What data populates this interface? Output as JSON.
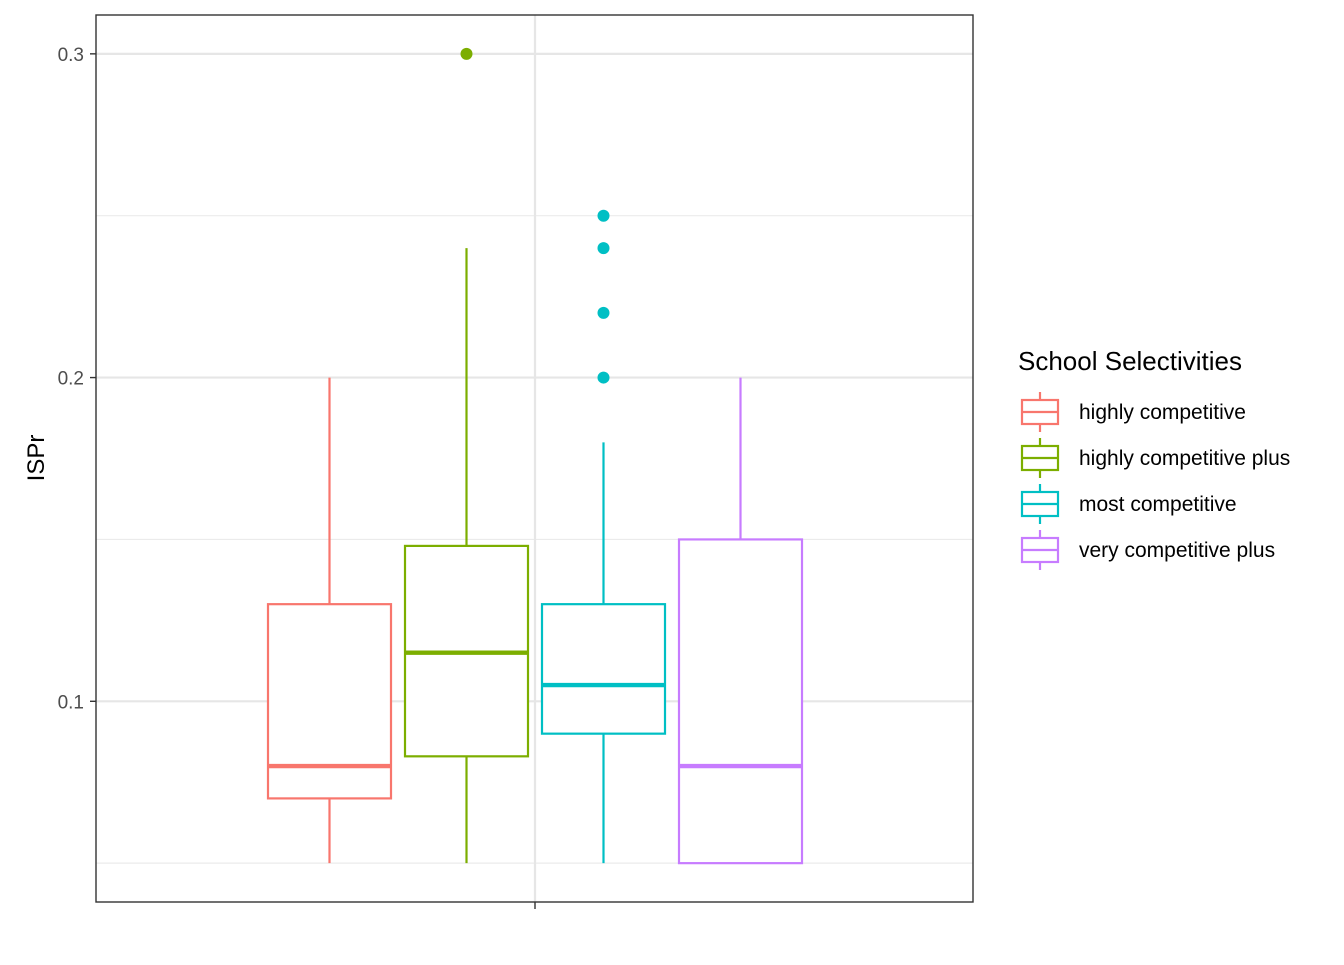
{
  "chart_data": {
    "type": "boxplot",
    "title": "",
    "xlabel": "",
    "ylabel": "ISPr",
    "ylim": [
      0.038,
      0.312
    ],
    "y_ticks": [
      {
        "value": 0.1,
        "label": "0.1"
      },
      {
        "value": 0.2,
        "label": "0.2"
      },
      {
        "value": 0.3,
        "label": "0.3"
      }
    ],
    "y_minor_gridlines": [
      0.05,
      0.15,
      0.25
    ],
    "grid": true,
    "legend": {
      "title": "School Selectivities",
      "placement": "right"
    },
    "series": [
      {
        "name": "highly competitive",
        "color": "#F8766D",
        "min": 0.05,
        "q1": 0.07,
        "median": 0.08,
        "q3": 0.13,
        "max": 0.2,
        "outliers": []
      },
      {
        "name": "highly competitive plus",
        "color": "#7CAE00",
        "min": 0.05,
        "q1": 0.083,
        "median": 0.115,
        "q3": 0.148,
        "max": 0.24,
        "outliers": [
          0.3
        ]
      },
      {
        "name": "most competitive",
        "color": "#00BFC4",
        "min": 0.05,
        "q1": 0.09,
        "median": 0.105,
        "q3": 0.13,
        "max": 0.18,
        "outliers": [
          0.2,
          0.22,
          0.24,
          0.25
        ]
      },
      {
        "name": "very competitive plus",
        "color": "#C77CFF",
        "min": 0.05,
        "q1": 0.05,
        "median": 0.08,
        "q3": 0.15,
        "max": 0.2,
        "outliers": []
      }
    ]
  }
}
